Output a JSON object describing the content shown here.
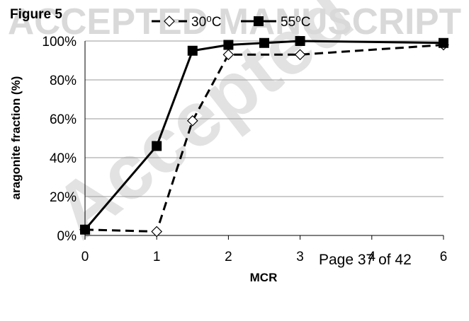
{
  "figure_label": "Figure 5",
  "watermark": {
    "banner": "ACCEPTED MANUSCRIPT",
    "diagonal": "Accepted",
    "color": "#d9d9d9"
  },
  "page_label": "Page 37 of 42",
  "chart_data": {
    "type": "line",
    "x": [
      0,
      1,
      1.5,
      2,
      2.5,
      3,
      6
    ],
    "x_ticks": [
      {
        "value": 0,
        "label": "0"
      },
      {
        "value": 1,
        "label": "1"
      },
      {
        "value": 2,
        "label": "2"
      },
      {
        "value": 3,
        "label": "3"
      },
      {
        "value": 4,
        "label": "4"
      },
      {
        "value": 6,
        "label": "6"
      }
    ],
    "xlabel": "MCR",
    "ylabel": "aragonite fraction (%)",
    "ylim": [
      0,
      100
    ],
    "y_ticks": [
      "0%",
      "20%",
      "40%",
      "60%",
      "80%",
      "100%"
    ],
    "grid": true,
    "legend_position": "top",
    "series": [
      {
        "name": "30⁰C",
        "marker": "open-diamond",
        "line_style": "dashed",
        "color": "#000000",
        "points": [
          [
            0,
            3
          ],
          [
            1,
            2
          ],
          [
            1.5,
            59
          ],
          [
            2,
            93
          ],
          [
            3,
            93
          ],
          [
            6,
            98
          ]
        ]
      },
      {
        "name": "55⁰C",
        "marker": "filled-square",
        "line_style": "solid",
        "color": "#000000",
        "points": [
          [
            0,
            3
          ],
          [
            1,
            46
          ],
          [
            1.5,
            95
          ],
          [
            2,
            98
          ],
          [
            2.5,
            99
          ],
          [
            3,
            100
          ],
          [
            6,
            99
          ]
        ]
      }
    ]
  }
}
